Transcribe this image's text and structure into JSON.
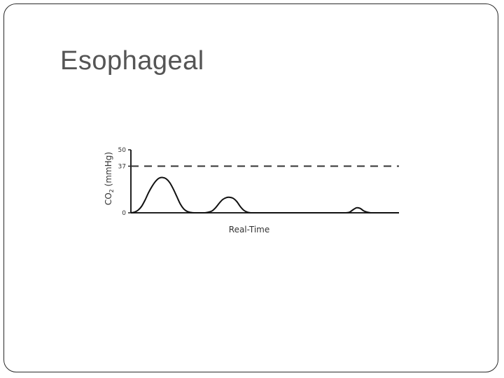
{
  "slide": {
    "title": "Esophageal"
  },
  "chart_data": {
    "type": "line",
    "title": "",
    "xlabel": "Real-Time",
    "ylabel": "CO2 (mmHg)",
    "ylabel_main": "CO",
    "ylabel_sub": "2",
    "ylabel_unit": " (mmHg)",
    "ylim": [
      0,
      50
    ],
    "yticks": [
      0,
      37,
      50
    ],
    "reference_line": {
      "value": 37,
      "style": "dashed"
    },
    "grid": false,
    "line_color": "#111111",
    "series": [
      {
        "values_description": "CO2 waveform with decreasing peaks",
        "x": [
          0,
          5,
          10,
          15,
          20,
          25,
          30,
          35,
          40,
          45,
          50,
          55,
          60,
          65,
          70,
          75,
          80,
          85,
          90,
          95,
          100,
          105,
          110,
          115,
          120,
          125,
          130,
          135,
          140,
          145,
          150,
          155,
          160,
          165,
          170,
          175,
          180,
          185,
          190,
          195,
          200,
          205,
          210,
          215,
          220,
          225,
          230,
          235,
          240,
          245,
          250,
          255,
          260,
          265,
          270,
          275,
          280,
          285,
          290,
          295,
          300,
          305,
          310,
          315,
          320,
          325,
          330,
          335,
          340,
          345,
          350,
          355,
          360,
          365,
          370,
          375,
          380
        ],
        "y": [
          0,
          0.5,
          2,
          5,
          10,
          16,
          21,
          25,
          27.5,
          28,
          27,
          24,
          19,
          13,
          7,
          3,
          1,
          0.3,
          0,
          0,
          0,
          0,
          0.5,
          1.5,
          4,
          7.5,
          10.5,
          12,
          12.3,
          11.5,
          9,
          5,
          2,
          0.5,
          0,
          0,
          0,
          0,
          0,
          0,
          0,
          0,
          0,
          0,
          0,
          0,
          0,
          0,
          0,
          0,
          0,
          0,
          0,
          0,
          0,
          0,
          0,
          0,
          0,
          0,
          0,
          0,
          0.5,
          2.5,
          4,
          3.5,
          1.5,
          0.5,
          0,
          0,
          0,
          0,
          0,
          0,
          0,
          0,
          0
        ]
      }
    ]
  }
}
